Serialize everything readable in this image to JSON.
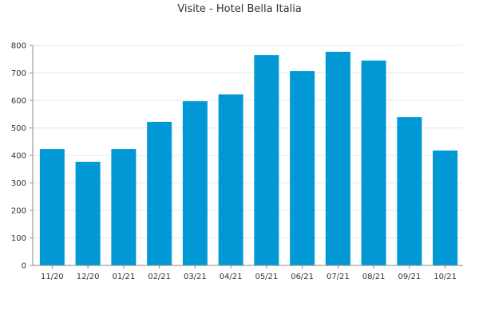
{
  "chart_data": {
    "type": "bar",
    "title": "Visite - Hotel Bella Italia",
    "xlabel": "",
    "ylabel": "",
    "categories": [
      "11/20",
      "12/20",
      "01/21",
      "02/21",
      "03/21",
      "04/21",
      "05/21",
      "06/21",
      "07/21",
      "08/21",
      "09/21",
      "10/21"
    ],
    "values": [
      423,
      377,
      423,
      522,
      597,
      622,
      765,
      707,
      777,
      745,
      539,
      418
    ],
    "ylim": [
      0,
      800
    ],
    "yticks": [
      0,
      100,
      200,
      300,
      400,
      500,
      600,
      700,
      800
    ],
    "grid": true,
    "legend": "none",
    "bar_color": "#0099d6",
    "grid_color": "#e6e6e6",
    "axis_color": "#888888"
  }
}
